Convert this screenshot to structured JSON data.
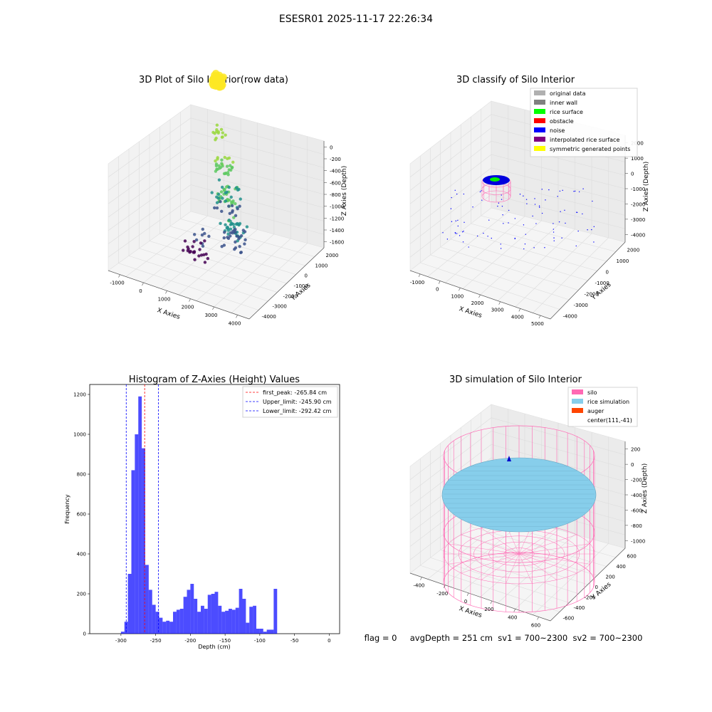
{
  "figure_title": "ESESR01 2025-11-17 22:26:34",
  "status_line": "flag = 0     avgDepth = 251 cm  sv1 = 700~2300  sv2 = 700~2300",
  "chart_data": [
    {
      "type": "scatter",
      "projection": "3d",
      "title": "3D Plot of Silo Interior(row data)",
      "xlabel": "X Axies",
      "ylabel": "Y Axies",
      "zlabel": "Z Axies (Depth)",
      "x_ticks": [
        "-1000",
        "0",
        "1000",
        "2000",
        "3000",
        "4000"
      ],
      "y_ticks": [
        "2000",
        "1000",
        "0",
        "-1000",
        "-2000",
        "-3000",
        "-4000"
      ],
      "z_ticks": [
        "0",
        "-200",
        "-400",
        "-600",
        "-800",
        "-1000",
        "-1200",
        "-1400",
        "-1600"
      ],
      "zlim": [
        -1700,
        100
      ],
      "colormap": "viridis",
      "clusters": [
        {
          "x": 300,
          "y": 1200,
          "z": 0,
          "spread": 180,
          "count": 70
        },
        {
          "x": 600,
          "y": 800,
          "z": -500,
          "spread": 250,
          "count": 14
        },
        {
          "x": 1300,
          "y": -300,
          "z": -700,
          "spread": 300,
          "count": 30
        },
        {
          "x": 2200,
          "y": -1800,
          "z": -800,
          "spread": 350,
          "count": 30
        },
        {
          "x": 3000,
          "y": -2800,
          "z": -1000,
          "spread": 300,
          "count": 30
        },
        {
          "x": 1200,
          "y": 200,
          "z": -1100,
          "spread": 500,
          "count": 30
        },
        {
          "x": 2300,
          "y": -1300,
          "z": -1300,
          "spread": 500,
          "count": 30
        },
        {
          "x": 800,
          "y": -1500,
          "z": -1500,
          "spread": 500,
          "count": 30
        }
      ]
    },
    {
      "type": "scatter",
      "projection": "3d",
      "title": "3D classify of Silo Interior",
      "xlabel": "X Axies",
      "ylabel": "Y Axies",
      "zlabel": "Z Axies (Depth)",
      "x_ticks": [
        "-1000",
        "0",
        "1000",
        "2000",
        "3000",
        "4000",
        "5000"
      ],
      "y_ticks": [
        "2000",
        "1000",
        "0",
        "-1000",
        "-2000",
        "-3000",
        "-4000"
      ],
      "z_ticks": [
        "2000",
        "1000",
        "0",
        "-1000",
        "-2000",
        "-3000",
        "-4000"
      ],
      "legend": [
        {
          "label": "original data",
          "color": "#b0b0b0"
        },
        {
          "label": "inner wall",
          "color": "#808080"
        },
        {
          "label": "rice surface",
          "color": "#00ff00"
        },
        {
          "label": "obstacle",
          "color": "#ff0000"
        },
        {
          "label": "noise",
          "color": "#0000ff"
        },
        {
          "label": "interpolated rice surface",
          "color": "#800080"
        },
        {
          "label": "symmetric generated points",
          "color": "#ffff00"
        }
      ],
      "legend_position": "top-right"
    },
    {
      "type": "bar",
      "title": "Histogram of Z-Axies (Height) Values",
      "xlabel": "Depth (cm)",
      "ylabel": "Frequency",
      "xlim": [
        -345,
        15
      ],
      "ylim": [
        0,
        1250
      ],
      "x_ticks": [
        -300,
        -250,
        -200,
        -150,
        -100,
        -50,
        0
      ],
      "y_ticks": [
        0,
        200,
        400,
        600,
        800,
        1000,
        1200
      ],
      "bin_width": 5,
      "bin_start": -300,
      "values": [
        10,
        60,
        300,
        820,
        1000,
        1190,
        930,
        345,
        220,
        145,
        110,
        80,
        60,
        65,
        60,
        110,
        120,
        125,
        185,
        220,
        250,
        175,
        110,
        140,
        125,
        195,
        200,
        210,
        140,
        110,
        115,
        125,
        120,
        130,
        225,
        175,
        55,
        135,
        140,
        25,
        25,
        10,
        20,
        20,
        225
      ],
      "bar_color": "#0000ff",
      "bar_alpha": 0.7,
      "lines": [
        {
          "label": "first_peak: -265.84 cm",
          "x": -265.84,
          "color": "#ff0000"
        },
        {
          "label": "Upper_limit: -245.90 cm",
          "x": -245.9,
          "color": "#0000ff"
        },
        {
          "label": "Lower_limit: -292.42 cm",
          "x": -292.42,
          "color": "#0000ff"
        }
      ],
      "legend_position": "top-right"
    },
    {
      "type": "surface",
      "projection": "3d",
      "title": "3D simulation of Silo Interior",
      "xlabel": "X Axies",
      "ylabel": "Y Axies",
      "zlabel": "Z Axies (Depth)",
      "x_ticks": [
        "-400",
        "-200",
        "0",
        "200",
        "400",
        "600"
      ],
      "y_ticks": [
        "600",
        "400",
        "200",
        "0",
        "-200",
        "-400",
        "-600"
      ],
      "z_ticks": [
        "200",
        "0",
        "-200",
        "-400",
        "-600",
        "-800",
        "-1000"
      ],
      "legend": [
        {
          "label": "silo",
          "color": "#ff69b4"
        },
        {
          "label": "rice simulation",
          "color": "#87ceeb"
        },
        {
          "label": "auger",
          "color": "#ff4500"
        },
        {
          "label": "center(111,-41)",
          "color": ""
        }
      ],
      "legend_position": "top-right",
      "silo_color": "#ff69b4",
      "surface_color": "#87ceeb"
    }
  ]
}
